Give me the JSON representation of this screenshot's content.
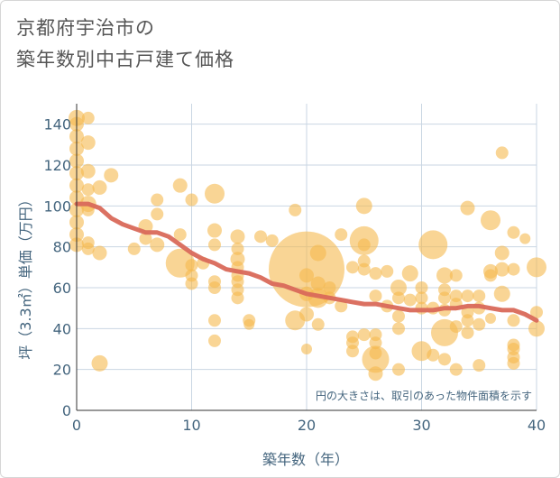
{
  "title": {
    "line1": "京都府宇治市の",
    "line2": "築年数別中古戸建て価格"
  },
  "chart_data": {
    "type": "scatter",
    "xlabel": "築年数（年）",
    "ylabel": "坪（3.3㎡）単価（万円）",
    "xlim": [
      0,
      40
    ],
    "ylim": [
      0,
      150
    ],
    "xticks": [
      0,
      10,
      20,
      30,
      40
    ],
    "yticks": [
      0,
      20,
      40,
      60,
      80,
      100,
      120,
      140
    ],
    "grid": true,
    "note": "円の大きさは、取引のあった物件面積を示す",
    "colors": {
      "bubble": "#f5b94e",
      "trend": "#d9695a",
      "grid": "#c9d6e3",
      "text": "#44657e"
    },
    "bubbles": [
      {
        "x": 0,
        "y": 143,
        "r": 9
      },
      {
        "x": 0,
        "y": 140,
        "r": 8
      },
      {
        "x": 0,
        "y": 134,
        "r": 8
      },
      {
        "x": 0,
        "y": 128,
        "r": 8
      },
      {
        "x": 0,
        "y": 122,
        "r": 8
      },
      {
        "x": 0,
        "y": 116,
        "r": 8
      },
      {
        "x": 0,
        "y": 110,
        "r": 8
      },
      {
        "x": 0,
        "y": 104,
        "r": 8
      },
      {
        "x": 0,
        "y": 98,
        "r": 8
      },
      {
        "x": 0,
        "y": 92,
        "r": 8
      },
      {
        "x": 0,
        "y": 86,
        "r": 8
      },
      {
        "x": 0,
        "y": 81,
        "r": 8
      },
      {
        "x": 1,
        "y": 143,
        "r": 7
      },
      {
        "x": 1,
        "y": 131,
        "r": 8
      },
      {
        "x": 1,
        "y": 117,
        "r": 8
      },
      {
        "x": 1,
        "y": 108,
        "r": 7
      },
      {
        "x": 1,
        "y": 101,
        "r": 9
      },
      {
        "x": 1,
        "y": 98,
        "r": 7
      },
      {
        "x": 1,
        "y": 82,
        "r": 7
      },
      {
        "x": 1,
        "y": 79,
        "r": 7
      },
      {
        "x": 2,
        "y": 109,
        "r": 8
      },
      {
        "x": 2,
        "y": 77,
        "r": 8
      },
      {
        "x": 2,
        "y": 23,
        "r": 9
      },
      {
        "x": 3,
        "y": 115,
        "r": 8
      },
      {
        "x": 5,
        "y": 79,
        "r": 7
      },
      {
        "x": 6,
        "y": 90,
        "r": 8
      },
      {
        "x": 6,
        "y": 84,
        "r": 7
      },
      {
        "x": 7,
        "y": 103,
        "r": 7
      },
      {
        "x": 7,
        "y": 96,
        "r": 7
      },
      {
        "x": 7,
        "y": 81,
        "r": 8
      },
      {
        "x": 9,
        "y": 110,
        "r": 8
      },
      {
        "x": 9,
        "y": 86,
        "r": 7
      },
      {
        "x": 9,
        "y": 72,
        "r": 16
      },
      {
        "x": 10,
        "y": 103,
        "r": 7
      },
      {
        "x": 10,
        "y": 71,
        "r": 7
      },
      {
        "x": 10,
        "y": 66,
        "r": 7
      },
      {
        "x": 10,
        "y": 62,
        "r": 7
      },
      {
        "x": 11,
        "y": 72,
        "r": 7
      },
      {
        "x": 12,
        "y": 106,
        "r": 11
      },
      {
        "x": 12,
        "y": 88,
        "r": 8
      },
      {
        "x": 12,
        "y": 81,
        "r": 7
      },
      {
        "x": 12,
        "y": 63,
        "r": 7
      },
      {
        "x": 12,
        "y": 60,
        "r": 7
      },
      {
        "x": 12,
        "y": 44,
        "r": 7
      },
      {
        "x": 12,
        "y": 34,
        "r": 7
      },
      {
        "x": 14,
        "y": 85,
        "r": 8
      },
      {
        "x": 14,
        "y": 79,
        "r": 7
      },
      {
        "x": 14,
        "y": 74,
        "r": 8
      },
      {
        "x": 14,
        "y": 70,
        "r": 7
      },
      {
        "x": 14,
        "y": 66,
        "r": 7
      },
      {
        "x": 14,
        "y": 63,
        "r": 7
      },
      {
        "x": 14,
        "y": 59,
        "r": 7
      },
      {
        "x": 14,
        "y": 55,
        "r": 7
      },
      {
        "x": 15,
        "y": 44,
        "r": 7
      },
      {
        "x": 15,
        "y": 42,
        "r": 6
      },
      {
        "x": 16,
        "y": 85,
        "r": 7
      },
      {
        "x": 17,
        "y": 83,
        "r": 7
      },
      {
        "x": 19,
        "y": 98,
        "r": 7
      },
      {
        "x": 19,
        "y": 44,
        "r": 11
      },
      {
        "x": 20,
        "y": 69,
        "r": 42
      },
      {
        "x": 20,
        "y": 66,
        "r": 8
      },
      {
        "x": 20,
        "y": 57,
        "r": 8
      },
      {
        "x": 20,
        "y": 47,
        "r": 8
      },
      {
        "x": 20,
        "y": 30,
        "r": 6
      },
      {
        "x": 21,
        "y": 77,
        "r": 9
      },
      {
        "x": 21,
        "y": 62,
        "r": 8
      },
      {
        "x": 21,
        "y": 55,
        "r": 11
      },
      {
        "x": 21,
        "y": 42,
        "r": 7
      },
      {
        "x": 22,
        "y": 60,
        "r": 7
      },
      {
        "x": 22,
        "y": 55,
        "r": 7
      },
      {
        "x": 23,
        "y": 51,
        "r": 7
      },
      {
        "x": 23,
        "y": 86,
        "r": 7
      },
      {
        "x": 24,
        "y": 70,
        "r": 7
      },
      {
        "x": 24,
        "y": 36,
        "r": 7
      },
      {
        "x": 24,
        "y": 33,
        "r": 7
      },
      {
        "x": 24,
        "y": 29,
        "r": 7
      },
      {
        "x": 25,
        "y": 100,
        "r": 9
      },
      {
        "x": 25,
        "y": 83,
        "r": 16
      },
      {
        "x": 25,
        "y": 81,
        "r": 7
      },
      {
        "x": 25,
        "y": 73,
        "r": 7
      },
      {
        "x": 25,
        "y": 69,
        "r": 7
      },
      {
        "x": 25,
        "y": 37,
        "r": 7
      },
      {
        "x": 26,
        "y": 67,
        "r": 7
      },
      {
        "x": 26,
        "y": 56,
        "r": 7
      },
      {
        "x": 26,
        "y": 37,
        "r": 7
      },
      {
        "x": 26,
        "y": 33,
        "r": 7
      },
      {
        "x": 26,
        "y": 28,
        "r": 7
      },
      {
        "x": 26,
        "y": 25,
        "r": 15
      },
      {
        "x": 26,
        "y": 18,
        "r": 8
      },
      {
        "x": 27,
        "y": 68,
        "r": 7
      },
      {
        "x": 27,
        "y": 51,
        "r": 7
      },
      {
        "x": 28,
        "y": 60,
        "r": 9
      },
      {
        "x": 28,
        "y": 55,
        "r": 7
      },
      {
        "x": 28,
        "y": 46,
        "r": 7
      },
      {
        "x": 28,
        "y": 40,
        "r": 7
      },
      {
        "x": 28,
        "y": 20,
        "r": 7
      },
      {
        "x": 29,
        "y": 67,
        "r": 9
      },
      {
        "x": 29,
        "y": 54,
        "r": 7
      },
      {
        "x": 30,
        "y": 60,
        "r": 7
      },
      {
        "x": 30,
        "y": 55,
        "r": 7
      },
      {
        "x": 30,
        "y": 50,
        "r": 7
      },
      {
        "x": 30,
        "y": 29,
        "r": 11
      },
      {
        "x": 31,
        "y": 81,
        "r": 16
      },
      {
        "x": 31,
        "y": 50,
        "r": 7
      },
      {
        "x": 31,
        "y": 27,
        "r": 7
      },
      {
        "x": 32,
        "y": 66,
        "r": 9
      },
      {
        "x": 32,
        "y": 59,
        "r": 7
      },
      {
        "x": 32,
        "y": 55,
        "r": 7
      },
      {
        "x": 32,
        "y": 49,
        "r": 7
      },
      {
        "x": 32,
        "y": 38,
        "r": 15
      },
      {
        "x": 32,
        "y": 25,
        "r": 7
      },
      {
        "x": 33,
        "y": 66,
        "r": 7
      },
      {
        "x": 33,
        "y": 56,
        "r": 7
      },
      {
        "x": 33,
        "y": 52,
        "r": 7
      },
      {
        "x": 33,
        "y": 41,
        "r": 7
      },
      {
        "x": 33,
        "y": 20,
        "r": 7
      },
      {
        "x": 34,
        "y": 99,
        "r": 8
      },
      {
        "x": 34,
        "y": 56,
        "r": 7
      },
      {
        "x": 34,
        "y": 48,
        "r": 7
      },
      {
        "x": 34,
        "y": 44,
        "r": 7
      },
      {
        "x": 34,
        "y": 38,
        "r": 7
      },
      {
        "x": 35,
        "y": 56,
        "r": 7
      },
      {
        "x": 35,
        "y": 50,
        "r": 7
      },
      {
        "x": 35,
        "y": 42,
        "r": 7
      },
      {
        "x": 35,
        "y": 22,
        "r": 7
      },
      {
        "x": 36,
        "y": 93,
        "r": 11
      },
      {
        "x": 36,
        "y": 68,
        "r": 8
      },
      {
        "x": 36,
        "y": 66,
        "r": 7
      },
      {
        "x": 36,
        "y": 45,
        "r": 6
      },
      {
        "x": 37,
        "y": 126,
        "r": 7
      },
      {
        "x": 37,
        "y": 77,
        "r": 8
      },
      {
        "x": 37,
        "y": 69,
        "r": 8
      },
      {
        "x": 37,
        "y": 57,
        "r": 9
      },
      {
        "x": 38,
        "y": 87,
        "r": 7
      },
      {
        "x": 38,
        "y": 69,
        "r": 7
      },
      {
        "x": 38,
        "y": 44,
        "r": 7
      },
      {
        "x": 38,
        "y": 32,
        "r": 7
      },
      {
        "x": 38,
        "y": 30,
        "r": 7
      },
      {
        "x": 38,
        "y": 26,
        "r": 7
      },
      {
        "x": 38,
        "y": 23,
        "r": 7
      },
      {
        "x": 39,
        "y": 84,
        "r": 6
      },
      {
        "x": 40,
        "y": 70,
        "r": 11
      },
      {
        "x": 40,
        "y": 48,
        "r": 7
      },
      {
        "x": 40,
        "y": 40,
        "r": 9
      }
    ],
    "trend": [
      {
        "x": 0,
        "y": 101
      },
      {
        "x": 1,
        "y": 101
      },
      {
        "x": 2,
        "y": 99
      },
      {
        "x": 3,
        "y": 94
      },
      {
        "x": 4,
        "y": 91
      },
      {
        "x": 5,
        "y": 89
      },
      {
        "x": 6,
        "y": 87
      },
      {
        "x": 7,
        "y": 87
      },
      {
        "x": 8,
        "y": 85
      },
      {
        "x": 9,
        "y": 81
      },
      {
        "x": 10,
        "y": 77
      },
      {
        "x": 11,
        "y": 74
      },
      {
        "x": 12,
        "y": 72
      },
      {
        "x": 13,
        "y": 69
      },
      {
        "x": 14,
        "y": 68
      },
      {
        "x": 15,
        "y": 67
      },
      {
        "x": 16,
        "y": 65
      },
      {
        "x": 17,
        "y": 62
      },
      {
        "x": 18,
        "y": 61
      },
      {
        "x": 19,
        "y": 59
      },
      {
        "x": 20,
        "y": 57
      },
      {
        "x": 21,
        "y": 56
      },
      {
        "x": 22,
        "y": 55
      },
      {
        "x": 23,
        "y": 54
      },
      {
        "x": 24,
        "y": 53
      },
      {
        "x": 25,
        "y": 52
      },
      {
        "x": 26,
        "y": 52
      },
      {
        "x": 27,
        "y": 51
      },
      {
        "x": 28,
        "y": 50
      },
      {
        "x": 29,
        "y": 49
      },
      {
        "x": 30,
        "y": 49
      },
      {
        "x": 31,
        "y": 49
      },
      {
        "x": 32,
        "y": 50
      },
      {
        "x": 33,
        "y": 50
      },
      {
        "x": 34,
        "y": 51
      },
      {
        "x": 35,
        "y": 51
      },
      {
        "x": 36,
        "y": 50
      },
      {
        "x": 37,
        "y": 49
      },
      {
        "x": 38,
        "y": 49
      },
      {
        "x": 39,
        "y": 47
      },
      {
        "x": 40,
        "y": 44
      }
    ]
  }
}
